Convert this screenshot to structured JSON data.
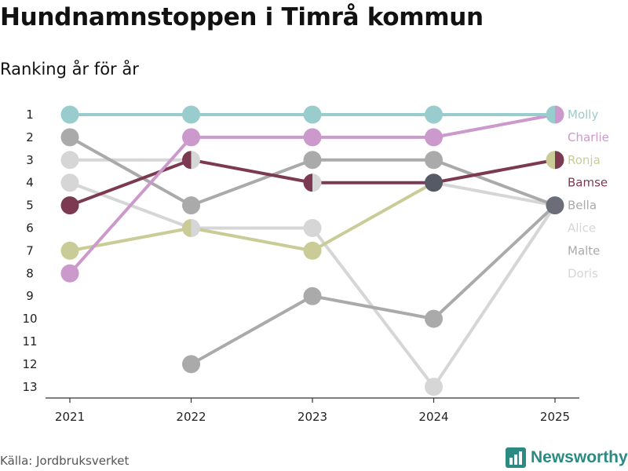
{
  "chart_data": {
    "type": "line",
    "title": "Hundnamnstoppen i Timrå kommun",
    "subtitle": "Ranking år för år",
    "x": [
      "2021",
      "2022",
      "2023",
      "2024",
      "2025"
    ],
    "ylim": [
      1,
      13
    ],
    "yticks": [
      "1",
      "2",
      "3",
      "4",
      "5",
      "6",
      "7",
      "8",
      "9",
      "10",
      "11",
      "12",
      "13"
    ],
    "series": [
      {
        "name": "Doris",
        "color": "#d6d6d6",
        "values": [
          4,
          6,
          6,
          13,
          5
        ]
      },
      {
        "name": "Alice",
        "color": "#d6d6d6",
        "values": [
          3,
          3,
          null,
          4,
          5
        ]
      },
      {
        "name": "Malte",
        "color": "#aaaaaa",
        "values": [
          null,
          12,
          9,
          10,
          5
        ]
      },
      {
        "name": "Bella",
        "color": "#aaaaaa",
        "values": [
          2,
          5,
          3,
          3,
          5
        ]
      },
      {
        "name": "Ronja",
        "color": "#c9cc96",
        "values": [
          7,
          6,
          7,
          4,
          3
        ]
      },
      {
        "name": "Bamse",
        "color": "#7b3a52",
        "values": [
          5,
          3,
          4,
          4,
          3
        ]
      },
      {
        "name": "Charlie",
        "color": "#cc99cc",
        "values": [
          8,
          2,
          2,
          2,
          1
        ]
      },
      {
        "name": "Molly",
        "color": "#99cccc",
        "values": [
          1,
          1,
          1,
          1,
          1
        ]
      }
    ],
    "end_labels": [
      {
        "name": "Molly",
        "color": "#99cccc",
        "rank": 1
      },
      {
        "name": "Charlie",
        "color": "#cc99cc",
        "rank": 2
      },
      {
        "name": "Ronja",
        "color": "#c9cc96",
        "rank": 3
      },
      {
        "name": "Bamse",
        "color": "#7b3a52",
        "rank": 4
      },
      {
        "name": "Bella",
        "color": "#aaaaaa",
        "rank": 5
      },
      {
        "name": "Alice",
        "color": "#d6d6d6",
        "rank": 6
      },
      {
        "name": "Malte",
        "color": "#aaaaaa",
        "rank": 7
      },
      {
        "name": "Doris",
        "color": "#d6d6d6",
        "rank": 8
      }
    ],
    "shared_markers": [
      {
        "year": "2022",
        "rank": 3,
        "colors": [
          "#7b3a52",
          "#d6d6d6"
        ]
      },
      {
        "year": "2022",
        "rank": 6,
        "colors": [
          "#c9cc96",
          "#d6d6d6"
        ]
      },
      {
        "year": "2023",
        "rank": 4,
        "colors": [
          "#7b3a52",
          "#d6d6d6"
        ]
      },
      {
        "year": "2024",
        "rank": 4,
        "colors": [
          "#555a66",
          "#555a66"
        ]
      },
      {
        "year": "2025",
        "rank": 1,
        "colors": [
          "#99cccc",
          "#cc99cc"
        ]
      },
      {
        "year": "2025",
        "rank": 3,
        "colors": [
          "#c9cc96",
          "#7b3a52"
        ]
      },
      {
        "year": "2025",
        "rank": 5,
        "colors": [
          "#6b6e78",
          "#6b6e78"
        ]
      }
    ]
  },
  "source": "Källa: Jordbruksverket",
  "brand": {
    "name": "Newsworthy",
    "color": "#2b8a82"
  }
}
